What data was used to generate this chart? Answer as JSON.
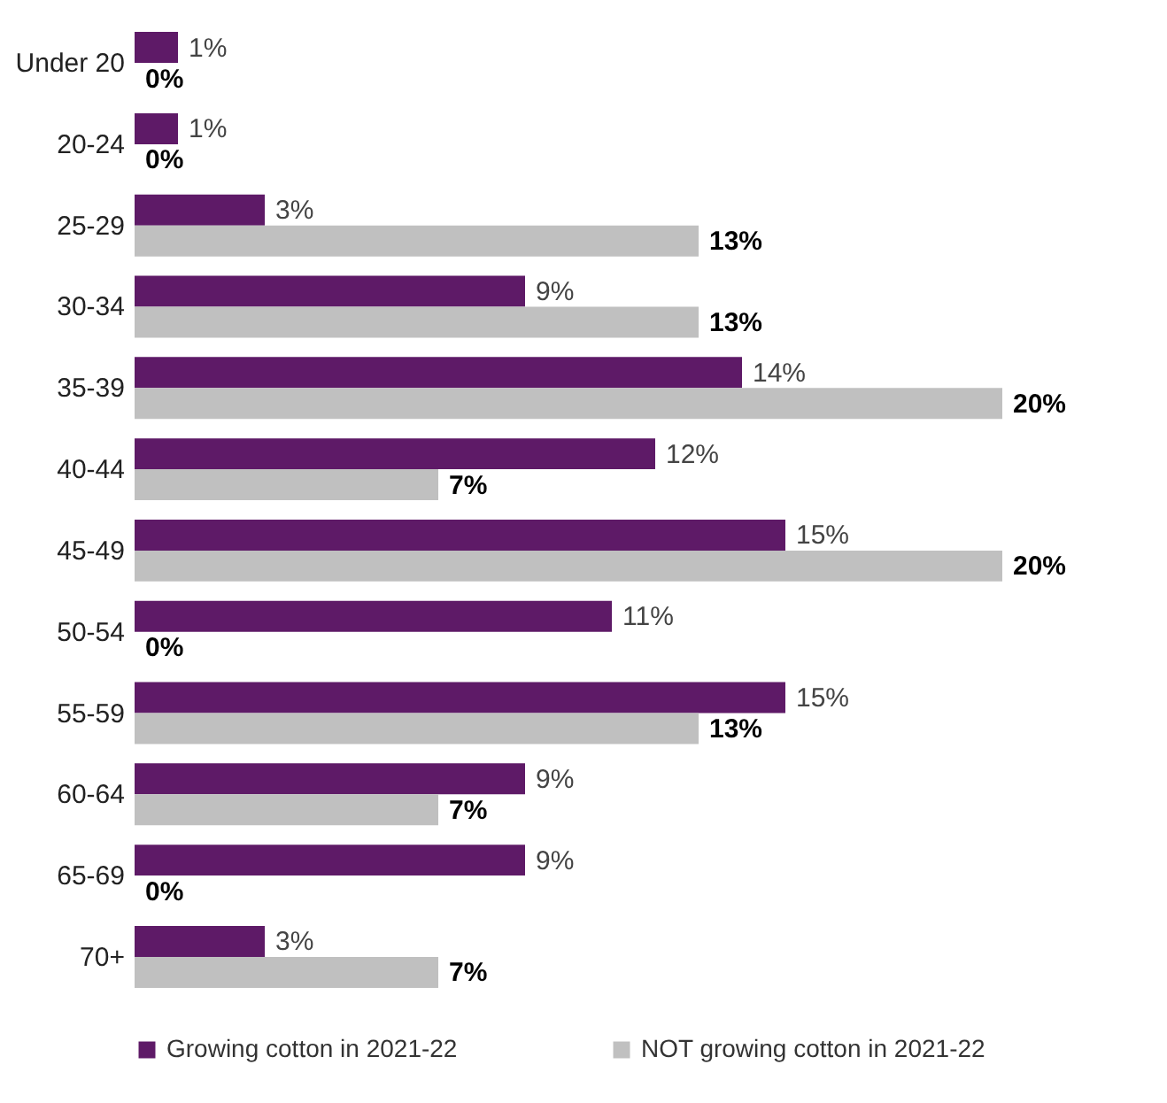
{
  "chart_data": {
    "type": "bar",
    "orientation": "horizontal",
    "categories": [
      "Under 20",
      "20-24",
      "25-29",
      "30-34",
      "35-39",
      "40-44",
      "45-49",
      "50-54",
      "55-59",
      "60-64",
      "65-69",
      "70+"
    ],
    "series": [
      {
        "name": "Growing cotton in 2021-22",
        "color": "#5e1a67",
        "values": [
          1,
          1,
          3,
          9,
          14,
          12,
          15,
          11,
          15,
          9,
          9,
          3
        ],
        "value_labels": [
          "1%",
          "1%",
          "3%",
          "9%",
          "14%",
          "12%",
          "15%",
          "11%",
          "15%",
          "9%",
          "9%",
          "3%"
        ]
      },
      {
        "name": "NOT growing cotton in 2021-22",
        "color": "#c0c0c0",
        "values": [
          0,
          0,
          13,
          13,
          20,
          7,
          20,
          0,
          13,
          7,
          0,
          7
        ],
        "value_labels": [
          "0%",
          "0%",
          "13%",
          "13%",
          "20%",
          "7%",
          "20%",
          "0%",
          "13%",
          "7%",
          "0%",
          "7%"
        ]
      }
    ],
    "legend": "bottom"
  }
}
